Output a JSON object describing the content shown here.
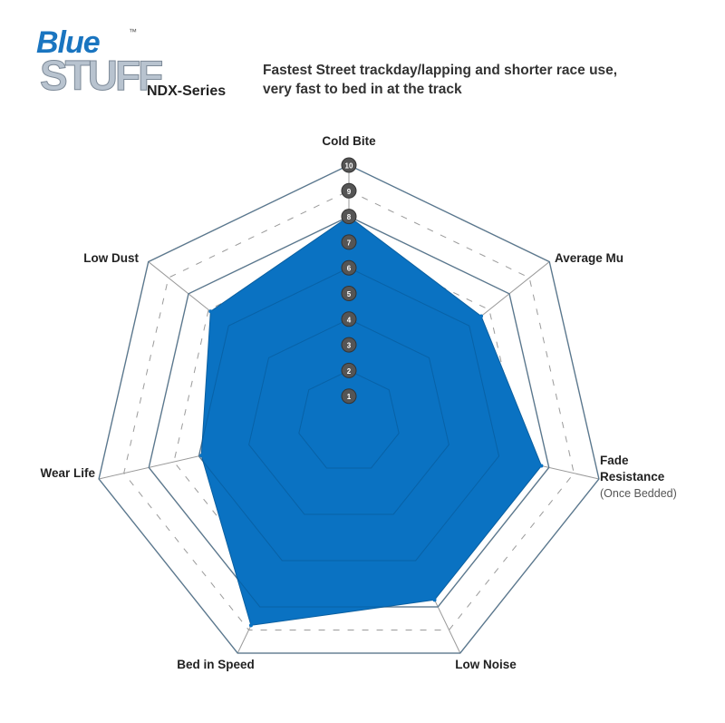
{
  "logo": {
    "line1": "Blue",
    "line2": "STUFF",
    "tm": "™"
  },
  "series_name": "NDX-Series",
  "description": "Fastest Street trackday/lapping and shorter race use, very fast to bed in at the track",
  "chart_data": {
    "type": "radar",
    "axes": [
      "Cold Bite",
      "Average Mu",
      "Fade Resistance",
      "Low Noise",
      "Bed in Speed",
      "Wear Life",
      "Low Dust"
    ],
    "axis_sublabels": {
      "Fade Resistance": "(Once Bedded)"
    },
    "scale_ticks": [
      "1",
      "2",
      "3",
      "4",
      "5",
      "6",
      "7",
      "8",
      "9",
      "10"
    ],
    "range": [
      0,
      10
    ],
    "values": [
      8,
      6.6,
      7.7,
      7.7,
      8.8,
      5.9,
      6.9
    ],
    "fill_color": "#0a72c2",
    "grid_color": "#9a9a9a",
    "tick_badge_color": "#555555"
  }
}
